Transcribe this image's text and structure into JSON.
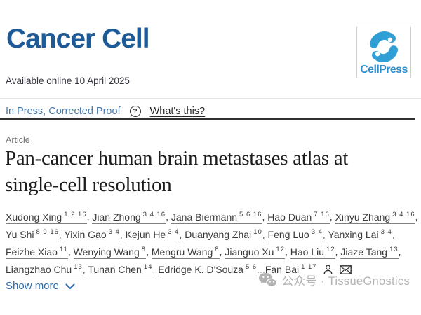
{
  "journal": {
    "name": "Cancer Cell"
  },
  "publisher": {
    "logo_text": "CellPress",
    "logo_blue": "#2f9fd6"
  },
  "meta": {
    "available_online": "Available online 10 April 2025"
  },
  "status_bar": {
    "status_link": "In Press, Corrected Proof",
    "help_icon_glyph": "?",
    "help_link": "What's this?"
  },
  "article": {
    "type_label": "Article",
    "title": "Pan-cancer human brain metastases atlas at single-cell resolution",
    "title_lines": [
      "Pan-cancer human brain metastases atlas at",
      "single-cell resolution"
    ]
  },
  "authors": {
    "lines": [
      [
        {
          "name": "Xudong Xing",
          "sup": "1 2 16",
          "sep": ", "
        },
        {
          "name": "Jian Zhong",
          "sup": "3 4 16",
          "sep": ", "
        },
        {
          "name": "Jana Biermann",
          "sup": "5 6 16",
          "sep": ", "
        },
        {
          "name": "Hao Duan",
          "sup": "7 16",
          "sep": ", "
        },
        {
          "name": "Xinyu Zhang",
          "sup": "3 4 16",
          "sep": ","
        }
      ],
      [
        {
          "name": "Yu Shi",
          "sup": "8 9 16",
          "sep": ", "
        },
        {
          "name": "Yixin Gao",
          "sup": "3 4",
          "sep": ", "
        },
        {
          "name": "Kejun He",
          "sup": "3 4",
          "sep": ", "
        },
        {
          "name": "Duanyang Zhai",
          "sup": "10",
          "sep": ", "
        },
        {
          "name": "Feng Luo",
          "sup": "3 4",
          "sep": ", "
        },
        {
          "name": "Yanxing Lai",
          "sup": "3 4",
          "sep": ","
        }
      ],
      [
        {
          "name": "Feizhe Xiao",
          "sup": "11",
          "sep": ", "
        },
        {
          "name": "Wenying Wang",
          "sup": "8",
          "sep": ", "
        },
        {
          "name": "Mengru Wang",
          "sup": "8",
          "sep": ", "
        },
        {
          "name": "Jianguo Xu",
          "sup": "12",
          "sep": ", "
        },
        {
          "name": "Hao Liu",
          "sup": "12",
          "sep": ", "
        },
        {
          "name": "Jiaze Tang",
          "sup": "13",
          "sep": ","
        }
      ],
      [
        {
          "name": "Liangzhao Chu",
          "sup": "13",
          "sep": ", "
        },
        {
          "name": "Tunan Chen",
          "sup": "14",
          "sep": ", "
        },
        {
          "name": "Edridge K. D'Souza",
          "sup": "5 6",
          "sep": "..."
        },
        {
          "name": "Fan Bai",
          "sup": "1 17",
          "sep": "",
          "icons": true
        }
      ]
    ],
    "corresponding_icons": [
      "person-icon",
      "envelope-icon"
    ]
  },
  "actions": {
    "show_more": "Show more"
  },
  "watermark": {
    "label": "公众号 · TissueGnostics"
  },
  "colors": {
    "journal_blue": "#1d5a96",
    "cellpress_blue": "#2f9fd6",
    "status_link_blue": "#4878ad",
    "show_more_blue": "#2d6cad",
    "watermark_gray": "#b3b3b3",
    "rule_dark": "#303030"
  }
}
